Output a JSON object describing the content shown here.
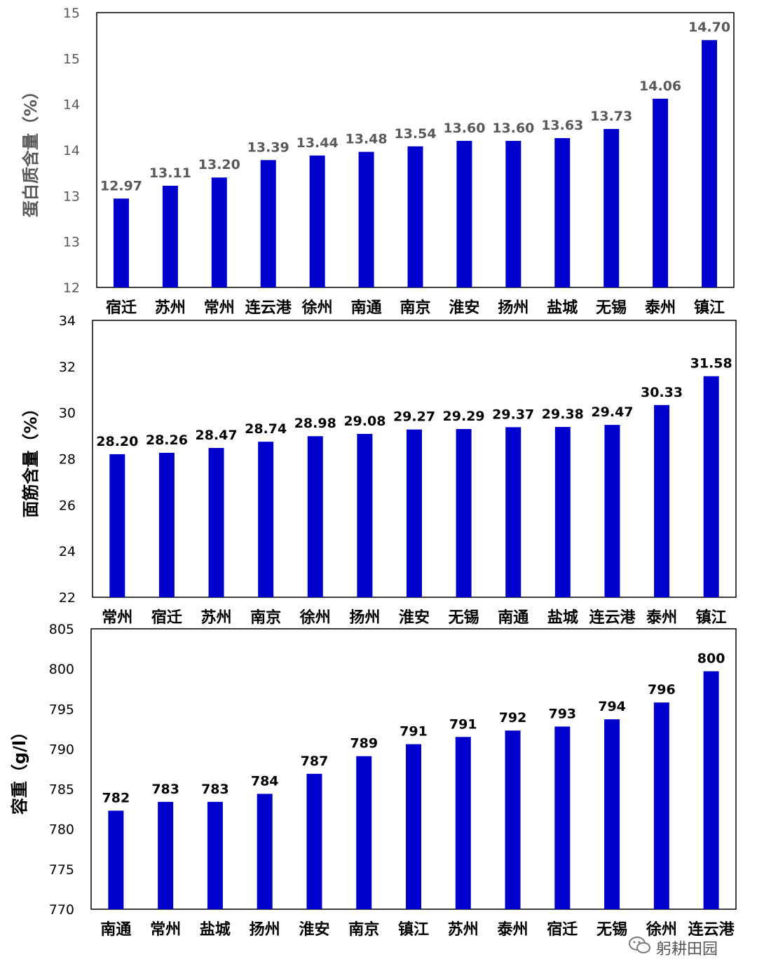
{
  "colors": {
    "bar": "#0000cc",
    "axis_text_dark": "#000000",
    "axis_text_grey": "#595959",
    "frame": "#000000"
  },
  "watermark": {
    "icon": "wechat-icon",
    "text": "躬耕田园"
  },
  "chart_data": [
    {
      "type": "bar",
      "ylabel": "蛋白质含量（%）",
      "ylim": [
        12,
        15
      ],
      "y_tick_labels": [
        "12",
        "13",
        "13",
        "14",
        "14",
        "15",
        "15"
      ],
      "categories": [
        "宿迁",
        "苏州",
        "常州",
        "连云港",
        "徐州",
        "南通",
        "南京",
        "淮安",
        "扬州",
        "盐城",
        "无锡",
        "泰州",
        "镇江"
      ],
      "values": [
        12.97,
        13.11,
        13.2,
        13.39,
        13.44,
        13.48,
        13.54,
        13.6,
        13.6,
        13.63,
        13.73,
        14.06,
        14.7
      ],
      "value_labels": [
        "12.97",
        "13.11",
        "13.20",
        "13.39",
        "13.44",
        "13.48",
        "13.54",
        "13.60",
        "13.60",
        "13.63",
        "13.73",
        "14.06",
        "14.70"
      ],
      "grid": false
    },
    {
      "type": "bar",
      "ylabel": "面筋含量（%）",
      "ylim": [
        22,
        34
      ],
      "y_tick_labels": [
        "22",
        "24",
        "26",
        "28",
        "30",
        "32",
        "34"
      ],
      "categories": [
        "常州",
        "宿迁",
        "苏州",
        "南京",
        "徐州",
        "扬州",
        "淮安",
        "无锡",
        "南通",
        "盐城",
        "连云港",
        "泰州",
        "镇江"
      ],
      "values": [
        28.2,
        28.26,
        28.47,
        28.74,
        28.98,
        29.08,
        29.27,
        29.29,
        29.37,
        29.38,
        29.47,
        30.33,
        31.58
      ],
      "value_labels": [
        "28.20",
        "28.26",
        "28.47",
        "28.74",
        "28.98",
        "29.08",
        "29.27",
        "29.29",
        "29.37",
        "29.38",
        "29.47",
        "30.33",
        "31.58"
      ],
      "grid": false
    },
    {
      "type": "bar",
      "ylabel": "容重（g/l）",
      "ylim": [
        770,
        805
      ],
      "y_tick_labels": [
        "770",
        "775",
        "780",
        "785",
        "790",
        "795",
        "800",
        "805"
      ],
      "categories": [
        "南通",
        "常州",
        "盐城",
        "扬州",
        "淮安",
        "南京",
        "镇江",
        "苏州",
        "泰州",
        "宿迁",
        "无锡",
        "徐州",
        "连云港"
      ],
      "values": [
        782.3,
        783.4,
        783.4,
        784.4,
        786.9,
        789.1,
        790.6,
        791.5,
        792.3,
        792.8,
        793.7,
        795.8,
        799.7
      ],
      "value_labels": [
        "782",
        "783",
        "783",
        "784",
        "787",
        "789",
        "791",
        "791",
        "792",
        "793",
        "794",
        "796",
        "800"
      ],
      "grid": false
    }
  ]
}
